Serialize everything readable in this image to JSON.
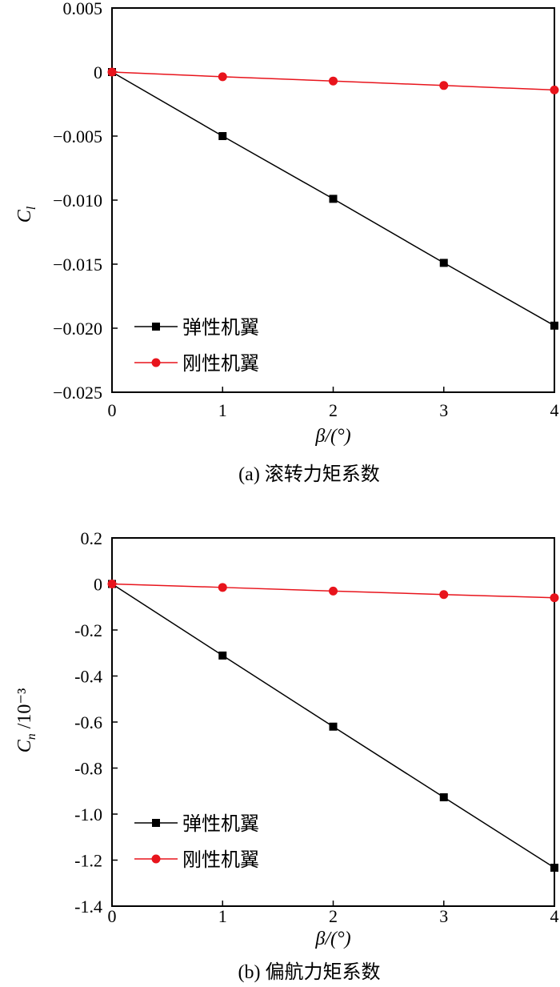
{
  "chart_data": [
    {
      "type": "line",
      "caption": "(a) 滚转力矩系数",
      "xlabel": "β/(°)",
      "ylabel": "C_l",
      "ylabel_main": "C",
      "ylabel_sub": "l",
      "ylabel_suffix": "",
      "xlim": [
        0,
        4
      ],
      "ylim": [
        -0.025,
        0.005
      ],
      "xticks": [
        "0",
        "1",
        "2",
        "3",
        "4"
      ],
      "yticks": [
        0.005,
        0,
        -0.005,
        -0.01,
        -0.015,
        -0.02,
        -0.025
      ],
      "ytick_labels": [
        "0.005",
        "0",
        "−0.005",
        "−0.010",
        "−0.015",
        "−0.020",
        "−0.025"
      ],
      "grid": false,
      "legend_position": "bottom-left",
      "x": [
        0,
        1,
        2,
        3,
        4
      ],
      "series": [
        {
          "name": "弹性机翼",
          "color": "#000000",
          "marker": "square",
          "values": [
            0,
            -0.005,
            -0.0099,
            -0.0149,
            -0.0198
          ]
        },
        {
          "name": "刚性机翼",
          "color": "#e8141c",
          "marker": "circle",
          "values": [
            0,
            -0.00037,
            -0.0007,
            -0.00105,
            -0.0014
          ]
        }
      ]
    },
    {
      "type": "line",
      "caption": "(b) 偏航力矩系数",
      "xlabel": "β/(°)",
      "ylabel": "C_n /10^-3",
      "ylabel_main": "C",
      "ylabel_sub": "n",
      "ylabel_suffix": " /10⁻³",
      "xlim": [
        0,
        4
      ],
      "ylim": [
        -1.4,
        0.2
      ],
      "xticks": [
        "0",
        "1",
        "2",
        "3",
        "4"
      ],
      "yticks": [
        0.2,
        0,
        -0.2,
        -0.4,
        -0.6,
        -0.8,
        -1.0,
        -1.2,
        -1.4
      ],
      "ytick_labels": [
        "0.2",
        "0",
        "-0.2",
        "-0.4",
        "-0.6",
        "-0.8",
        "-1.0",
        "-1.2",
        "-1.4"
      ],
      "grid": false,
      "legend_position": "bottom-left",
      "x": [
        0,
        1,
        2,
        3,
        4
      ],
      "series": [
        {
          "name": "弹性机翼",
          "color": "#000000",
          "marker": "square",
          "values": [
            0,
            -0.311,
            -0.62,
            -0.927,
            -1.233
          ]
        },
        {
          "name": "刚性机翼",
          "color": "#e8141c",
          "marker": "circle",
          "values": [
            0,
            -0.015,
            -0.031,
            -0.046,
            -0.06
          ]
        }
      ]
    }
  ]
}
